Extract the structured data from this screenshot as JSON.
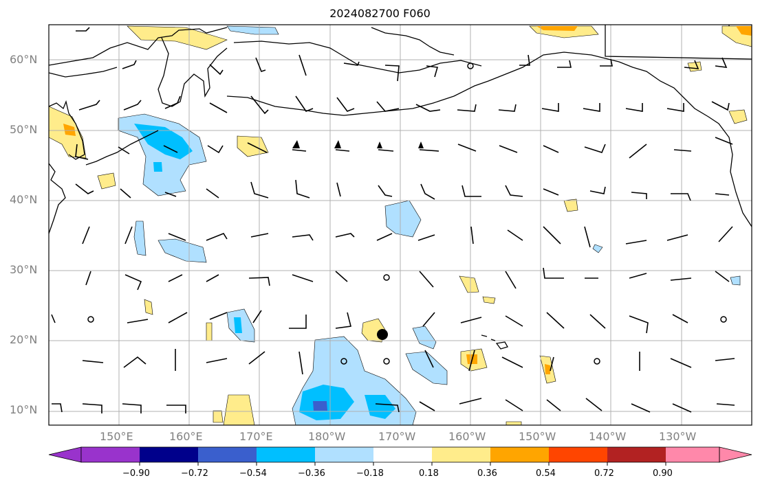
{
  "title": "2024082700 F060",
  "map": {
    "projection": "PlateCarree",
    "lon_range": [
      140,
      240
    ],
    "lat_range": [
      8,
      65
    ],
    "gridlines": true,
    "coastlines": true,
    "storm_center_marker": {
      "lon": 187,
      "lat": 21
    }
  },
  "lat_labels": [
    "10°N",
    "20°N",
    "30°N",
    "40°N",
    "50°N",
    "60°N"
  ],
  "lon_labels": [
    "150°E",
    "160°E",
    "170°E",
    "180°W",
    "170°W",
    "160°W",
    "150°W",
    "140°W",
    "130°W"
  ],
  "colorbar": {
    "tick_labels": [
      "−0.90",
      "−0.72",
      "−0.54",
      "−0.36",
      "−0.18",
      "0.18",
      "0.36",
      "0.54",
      "0.72",
      "0.90"
    ],
    "colors": [
      "#9933CC",
      "#00008B",
      "#3A5FCD",
      "#00BFFF",
      "#B0E0FF",
      "#FFFFFF",
      "#FFEC8B",
      "#FFA500",
      "#FF4500",
      "#B22222",
      "#FF88AA"
    ],
    "extend": "both"
  }
}
